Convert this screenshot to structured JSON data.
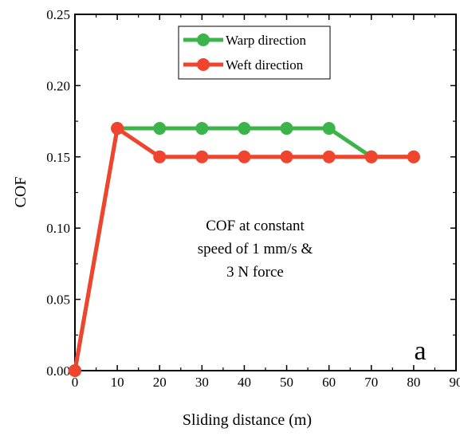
{
  "chart_data": {
    "type": "line",
    "xlabel": "Sliding distance (m)",
    "ylabel": "COF",
    "xlim": [
      0,
      90
    ],
    "ylim": [
      0,
      0.25
    ],
    "x_ticks": [
      "0",
      "10",
      "20",
      "30",
      "40",
      "50",
      "60",
      "70",
      "80",
      "90"
    ],
    "y_ticks": [
      "0.00",
      "0.05",
      "0.10",
      "0.15",
      "0.20",
      "0.25"
    ],
    "legend_position": "top-center",
    "grid": false,
    "series": [
      {
        "name": "Warp direction",
        "color": "#3cb44b",
        "x": [
          0,
          10,
          20,
          30,
          40,
          50,
          60,
          70,
          80
        ],
        "y": [
          0.0,
          0.17,
          0.17,
          0.17,
          0.17,
          0.17,
          0.17,
          0.15,
          0.15
        ]
      },
      {
        "name": "Weft direction",
        "color": "#f0442e",
        "x": [
          0,
          10,
          20,
          30,
          40,
          50,
          60,
          70,
          80
        ],
        "y": [
          0.0,
          0.17,
          0.15,
          0.15,
          0.15,
          0.15,
          0.15,
          0.15,
          0.15
        ]
      }
    ],
    "annotation": [
      "COF at constant",
      "speed of 1 mm/s &",
      "3 N force"
    ],
    "panel_label": "a"
  }
}
